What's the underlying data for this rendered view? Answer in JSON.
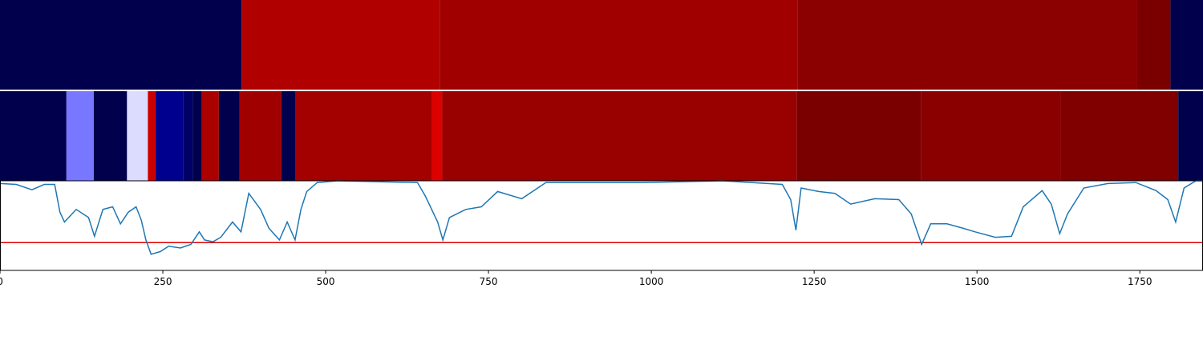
{
  "chart_data": [
    {
      "type": "strip",
      "xlim": [
        0,
        1847
      ],
      "edges": [
        0,
        371,
        675,
        1225,
        1746,
        1797,
        1847
      ],
      "colors": [
        "#00004c",
        "#b00000",
        "#a00000",
        "#8b0000",
        "#7a0000",
        "#00004c"
      ]
    },
    {
      "type": "strip",
      "xlim": [
        0,
        1847
      ],
      "edges": [
        0,
        102,
        144,
        195,
        227,
        239,
        281,
        296,
        310,
        336,
        368,
        432,
        454,
        663,
        679,
        1223,
        1414,
        1629,
        1809,
        1847
      ],
      "colors": [
        "#00004c",
        "#7777ff",
        "#00004c",
        "#dcdcff",
        "#cc0000",
        "#00008f",
        "#000066",
        "#00004c",
        "#aa0000",
        "#00004c",
        "#a00000",
        "#00004c",
        "#a30000",
        "#dd0000",
        "#990000",
        "#7a0000",
        "#8a0000",
        "#800000",
        "#00004c"
      ]
    },
    {
      "type": "line",
      "xlim": [
        0,
        1847
      ],
      "ylim": [
        0,
        1
      ],
      "color": "#1f77b4",
      "hline": 0.31,
      "hline_color": "#e00000",
      "xticks": [
        0,
        250,
        500,
        750,
        1000,
        1250,
        1500,
        1750
      ],
      "x": [
        0,
        25,
        49,
        68,
        84,
        92,
        99,
        117,
        136,
        145,
        158,
        173,
        185,
        197,
        209,
        217,
        224,
        232,
        246,
        259,
        277,
        293,
        306,
        314,
        327,
        339,
        357,
        370,
        382,
        400,
        413,
        429,
        441,
        453,
        462,
        471,
        487,
        518,
        641,
        653,
        672,
        680,
        690,
        715,
        739,
        764,
        801,
        838,
        986,
        1109,
        1201,
        1214,
        1222,
        1230,
        1257,
        1282,
        1306,
        1343,
        1380,
        1399,
        1415,
        1429,
        1454,
        1479,
        1497,
        1528,
        1553,
        1571,
        1600,
        1614,
        1627,
        1639,
        1664,
        1701,
        1744,
        1775,
        1793,
        1805,
        1818,
        1836,
        1847
      ],
      "values": [
        0.97,
        0.96,
        0.9,
        0.96,
        0.96,
        0.65,
        0.54,
        0.68,
        0.59,
        0.38,
        0.68,
        0.71,
        0.52,
        0.65,
        0.71,
        0.56,
        0.34,
        0.18,
        0.21,
        0.27,
        0.25,
        0.29,
        0.43,
        0.34,
        0.32,
        0.37,
        0.54,
        0.43,
        0.86,
        0.68,
        0.47,
        0.34,
        0.54,
        0.34,
        0.68,
        0.88,
        0.98,
        1.0,
        0.98,
        0.83,
        0.54,
        0.34,
        0.59,
        0.68,
        0.71,
        0.88,
        0.8,
        0.98,
        0.98,
        1.0,
        0.96,
        0.79,
        0.45,
        0.92,
        0.88,
        0.86,
        0.74,
        0.8,
        0.79,
        0.63,
        0.29,
        0.52,
        0.52,
        0.47,
        0.43,
        0.37,
        0.38,
        0.71,
        0.89,
        0.74,
        0.41,
        0.63,
        0.92,
        0.97,
        0.98,
        0.89,
        0.79,
        0.54,
        0.92,
        1.0,
        1.0
      ]
    }
  ]
}
